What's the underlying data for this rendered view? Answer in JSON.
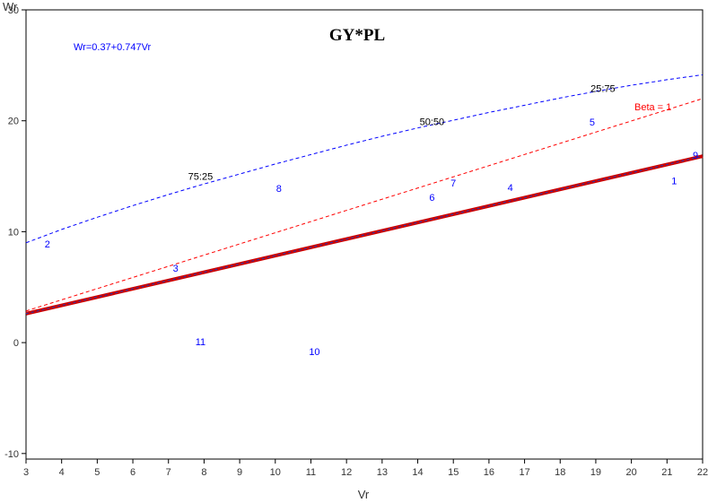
{
  "chart_data": {
    "type": "scatter",
    "title": "GY*PL",
    "xlabel": "Vr",
    "ylabel": "Wr",
    "xlim": [
      3,
      22
    ],
    "ylim": [
      -10.5,
      30
    ],
    "xticks": [
      3,
      4,
      5,
      6,
      7,
      8,
      9,
      10,
      11,
      12,
      13,
      14,
      15,
      16,
      17,
      18,
      19,
      20,
      21,
      22
    ],
    "yticks": [
      -10,
      0,
      10,
      20,
      30
    ],
    "grid": false,
    "equation": "Wr=0.37+0.747Vr",
    "regression": {
      "intercept": 0.37,
      "slope": 0.747,
      "x": [
        3,
        22
      ]
    },
    "beta_line": {
      "label": "Beta = 1",
      "x": [
        3,
        22
      ],
      "y": [
        2.85,
        22
      ]
    },
    "parabola": {
      "points": [
        [
          3,
          9.0
        ],
        [
          4,
          10.2
        ],
        [
          5,
          11.3
        ],
        [
          6,
          12.35
        ],
        [
          7,
          13.35
        ],
        [
          8,
          14.3
        ],
        [
          9,
          15.2
        ],
        [
          10,
          16.1
        ],
        [
          11,
          16.95
        ],
        [
          12,
          17.8
        ],
        [
          13,
          18.6
        ],
        [
          14,
          19.35
        ],
        [
          15,
          20.05
        ],
        [
          16,
          20.75
        ],
        [
          17,
          21.4
        ],
        [
          18,
          22.05
        ],
        [
          19,
          22.65
        ],
        [
          20,
          23.2
        ],
        [
          21,
          23.7
        ],
        [
          22,
          24.15
        ]
      ],
      "labels": [
        {
          "text": "75:25",
          "x": 7.9,
          "y": 14.7
        },
        {
          "text": "50:50",
          "x": 14.4,
          "y": 19.6
        },
        {
          "text": "25:75",
          "x": 19.2,
          "y": 22.6
        }
      ]
    },
    "points": [
      {
        "label": "1",
        "x": 21.2,
        "y": 14.6
      },
      {
        "label": "2",
        "x": 3.6,
        "y": 8.9
      },
      {
        "label": "3",
        "x": 7.2,
        "y": 6.7
      },
      {
        "label": "4",
        "x": 16.6,
        "y": 14.0
      },
      {
        "label": "5",
        "x": 18.9,
        "y": 19.9
      },
      {
        "label": "6",
        "x": 14.4,
        "y": 13.1
      },
      {
        "label": "7",
        "x": 15.0,
        "y": 14.4
      },
      {
        "label": "8",
        "x": 10.1,
        "y": 13.9
      },
      {
        "label": "9",
        "x": 21.8,
        "y": 16.9
      },
      {
        "label": "10",
        "x": 11.1,
        "y": -0.8
      },
      {
        "label": "11",
        "x": 7.9,
        "y": 0.1
      }
    ],
    "colors": {
      "points": "#0000ff",
      "regression_main": "#cc0000",
      "regression_dash": "#1f3fbf",
      "beta_line": "#ff0000",
      "parabola": "#0000ff",
      "frame": "#000000",
      "axis_text": "#333333"
    }
  }
}
